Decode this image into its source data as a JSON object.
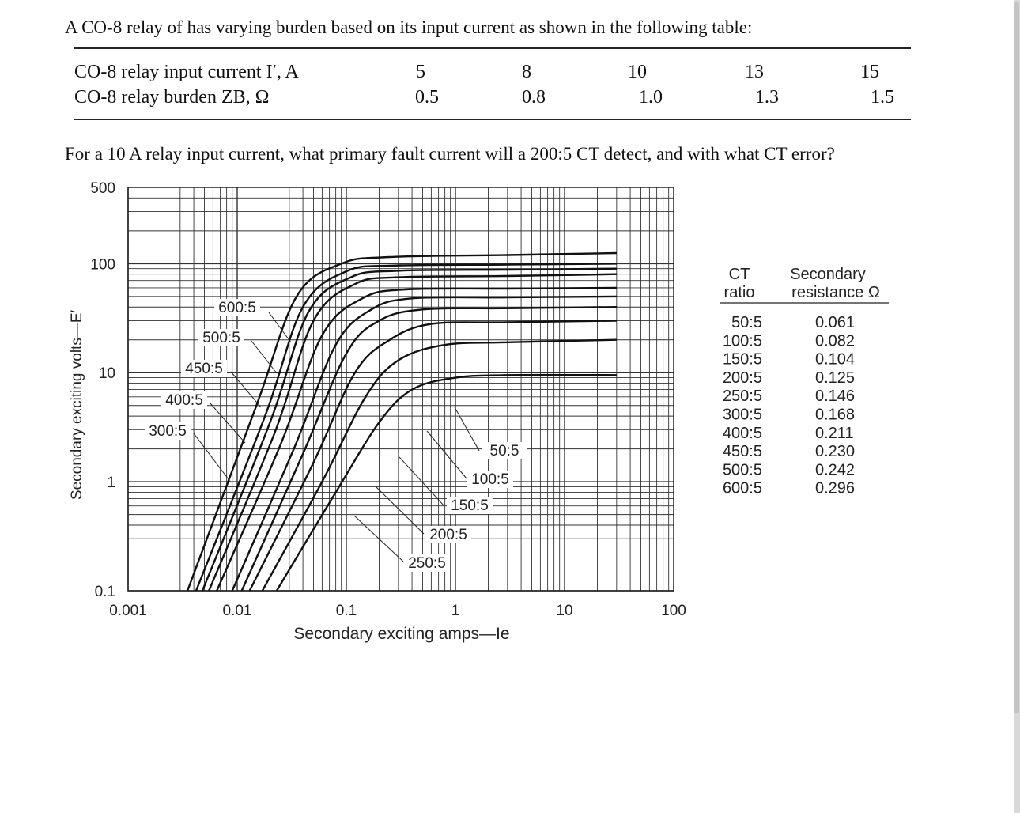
{
  "problem": {
    "intro": "A CO-8 relay of has varying burden based on its input current as shown in the following table:",
    "question": "For a 10 A relay input current, what primary fault current will a 200:5 CT detect, and with what CT error?"
  },
  "relay_table": {
    "row1_label": "CO-8 relay input current I′, A",
    "row2_label": "CO-8 relay burden ZB, Ω",
    "currents": [
      "5",
      "8",
      "10",
      "13",
      "15"
    ],
    "burdens": [
      "0.5",
      "0.8",
      "1.0",
      "1.3",
      "1.5"
    ]
  },
  "chart_data": {
    "type": "line",
    "title": "",
    "xlabel": "Secondary exciting amps—Ie",
    "ylabel": "Secondary exciting volts—E′",
    "x_scale": "log",
    "y_scale": "log",
    "xlim": [
      0.001,
      100
    ],
    "ylim": [
      0.1,
      500
    ],
    "x_ticks": [
      "0.001",
      "0.01",
      "0.1",
      "1",
      "10",
      "100"
    ],
    "y_ticks": [
      "0.1",
      "1",
      "10",
      "100",
      "500"
    ],
    "grid": true,
    "series": [
      {
        "name": "50:5",
        "points": [
          [
            0.023,
            0.1
          ],
          [
            0.08,
            0.8
          ],
          [
            0.2,
            3.5
          ],
          [
            0.4,
            7
          ],
          [
            1,
            9
          ],
          [
            3,
            9.5
          ],
          [
            30,
            9.5
          ]
        ]
      },
      {
        "name": "100:5",
        "points": [
          [
            0.017,
            0.1
          ],
          [
            0.06,
            1
          ],
          [
            0.15,
            6
          ],
          [
            0.3,
            13
          ],
          [
            0.8,
            18
          ],
          [
            3,
            19
          ],
          [
            30,
            20
          ]
        ]
      },
      {
        "name": "150:5",
        "points": [
          [
            0.013,
            0.1
          ],
          [
            0.05,
            1.5
          ],
          [
            0.12,
            10
          ],
          [
            0.25,
            20
          ],
          [
            0.6,
            28
          ],
          [
            3,
            29
          ],
          [
            30,
            30
          ]
        ]
      },
      {
        "name": "200:5",
        "points": [
          [
            0.011,
            0.1
          ],
          [
            0.04,
            1.8
          ],
          [
            0.1,
            15
          ],
          [
            0.2,
            30
          ],
          [
            0.5,
            38
          ],
          [
            3,
            39
          ],
          [
            30,
            40
          ]
        ]
      },
      {
        "name": "250:5",
        "points": [
          [
            0.009,
            0.1
          ],
          [
            0.033,
            2
          ],
          [
            0.08,
            18
          ],
          [
            0.17,
            38
          ],
          [
            0.4,
            48
          ],
          [
            3,
            49
          ],
          [
            30,
            50
          ]
        ]
      },
      {
        "name": "300:5",
        "points": [
          [
            0.0065,
            0.1
          ],
          [
            0.025,
            2.2
          ],
          [
            0.06,
            22
          ],
          [
            0.14,
            48
          ],
          [
            0.35,
            58
          ],
          [
            3,
            59
          ],
          [
            30,
            60
          ]
        ]
      },
      {
        "name": "400:5",
        "points": [
          [
            0.0055,
            0.1
          ],
          [
            0.022,
            2.8
          ],
          [
            0.05,
            30
          ],
          [
            0.12,
            65
          ],
          [
            0.3,
            75
          ],
          [
            3,
            77
          ],
          [
            30,
            80
          ]
        ]
      },
      {
        "name": "450:5",
        "points": [
          [
            0.0048,
            0.1
          ],
          [
            0.02,
            3.5
          ],
          [
            0.045,
            36
          ],
          [
            0.11,
            75
          ],
          [
            0.3,
            86
          ],
          [
            3,
            88
          ],
          [
            30,
            90
          ]
        ]
      },
      {
        "name": "500:5",
        "points": [
          [
            0.0042,
            0.1
          ],
          [
            0.018,
            4
          ],
          [
            0.04,
            40
          ],
          [
            0.1,
            85
          ],
          [
            0.28,
            96
          ],
          [
            3,
            98
          ],
          [
            30,
            100
          ]
        ]
      },
      {
        "name": "600:5",
        "points": [
          [
            0.0035,
            0.1
          ],
          [
            0.015,
            5
          ],
          [
            0.035,
            50
          ],
          [
            0.09,
            100
          ],
          [
            0.25,
            115
          ],
          [
            3,
            120
          ],
          [
            30,
            125
          ]
        ]
      }
    ],
    "legend_table": {
      "header_ratio": [
        "CT",
        "ratio"
      ],
      "header_resistance": [
        "Secondary",
        "resistance Ω"
      ],
      "ratios": [
        "50:5",
        "100:5",
        "150:5",
        "200:5",
        "250:5",
        "300:5",
        "400:5",
        "450:5",
        "500:5",
        "600:5"
      ],
      "resistances": [
        "0.061",
        "0.082",
        "0.104",
        "0.125",
        "0.146",
        "0.168",
        "0.211",
        "0.230",
        "0.242",
        "0.296"
      ]
    }
  }
}
